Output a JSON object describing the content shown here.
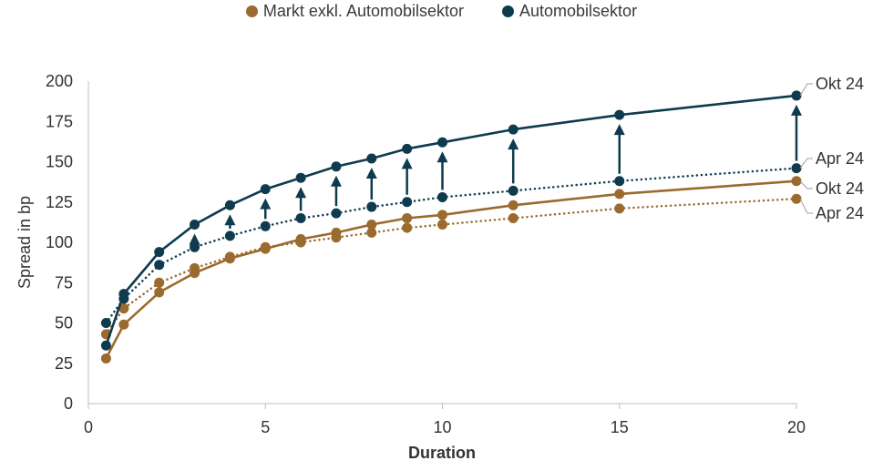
{
  "chart_data": {
    "type": "line",
    "title": "",
    "xlabel": "Duration",
    "ylabel": "Spread in bp",
    "xlim": [
      0,
      20
    ],
    "ylim": [
      0,
      200
    ],
    "xticks": [
      0,
      5,
      10,
      15,
      20
    ],
    "yticks": [
      0,
      25,
      50,
      75,
      100,
      125,
      150,
      175,
      200
    ],
    "grid": false,
    "legend_position": "top-center",
    "x": [
      0.5,
      1,
      2,
      3,
      4,
      5,
      6,
      7,
      8,
      9,
      10,
      12,
      15,
      20
    ],
    "series": [
      {
        "name": "Markt exkl. Automobilsektor",
        "period": "Okt 24",
        "style": "solid",
        "color": "#9b6a2e",
        "values": [
          28,
          49,
          69,
          81,
          90,
          96,
          102,
          106,
          111,
          115,
          117,
          123,
          130,
          138
        ]
      },
      {
        "name": "Markt exkl. Automobilsektor",
        "period": "Apr 24",
        "style": "dotted",
        "color": "#9b6a2e",
        "values": [
          43,
          59,
          75,
          84,
          91,
          97,
          100,
          103,
          106,
          109,
          111,
          115,
          121,
          127
        ]
      },
      {
        "name": "Automobilsektor",
        "period": "Okt 24",
        "style": "solid",
        "color": "#0f3b4f",
        "values": [
          36,
          68,
          94,
          111,
          123,
          133,
          140,
          147,
          152,
          158,
          162,
          170,
          179,
          191
        ]
      },
      {
        "name": "Automobilsektor",
        "period": "Apr 24",
        "style": "dotted",
        "color": "#0f3b4f",
        "values": [
          50,
          65,
          86,
          97,
          104,
          110,
          115,
          118,
          122,
          125,
          128,
          132,
          138,
          146
        ]
      }
    ],
    "arrows": {
      "series_from": "Automobilsektor Apr 24",
      "series_to": "Automobilsektor Okt 24",
      "x": [
        3,
        4,
        5,
        6,
        7,
        8,
        9,
        10,
        12,
        15,
        20
      ]
    },
    "end_labels": [
      "Okt 24",
      "Apr 24",
      "Okt 24",
      "Apr 24"
    ]
  },
  "legend": [
    {
      "label": "Markt exkl. Automobilsektor",
      "color": "#9b6a2e"
    },
    {
      "label": "Automobilsektor",
      "color": "#0f3b4f"
    }
  ]
}
